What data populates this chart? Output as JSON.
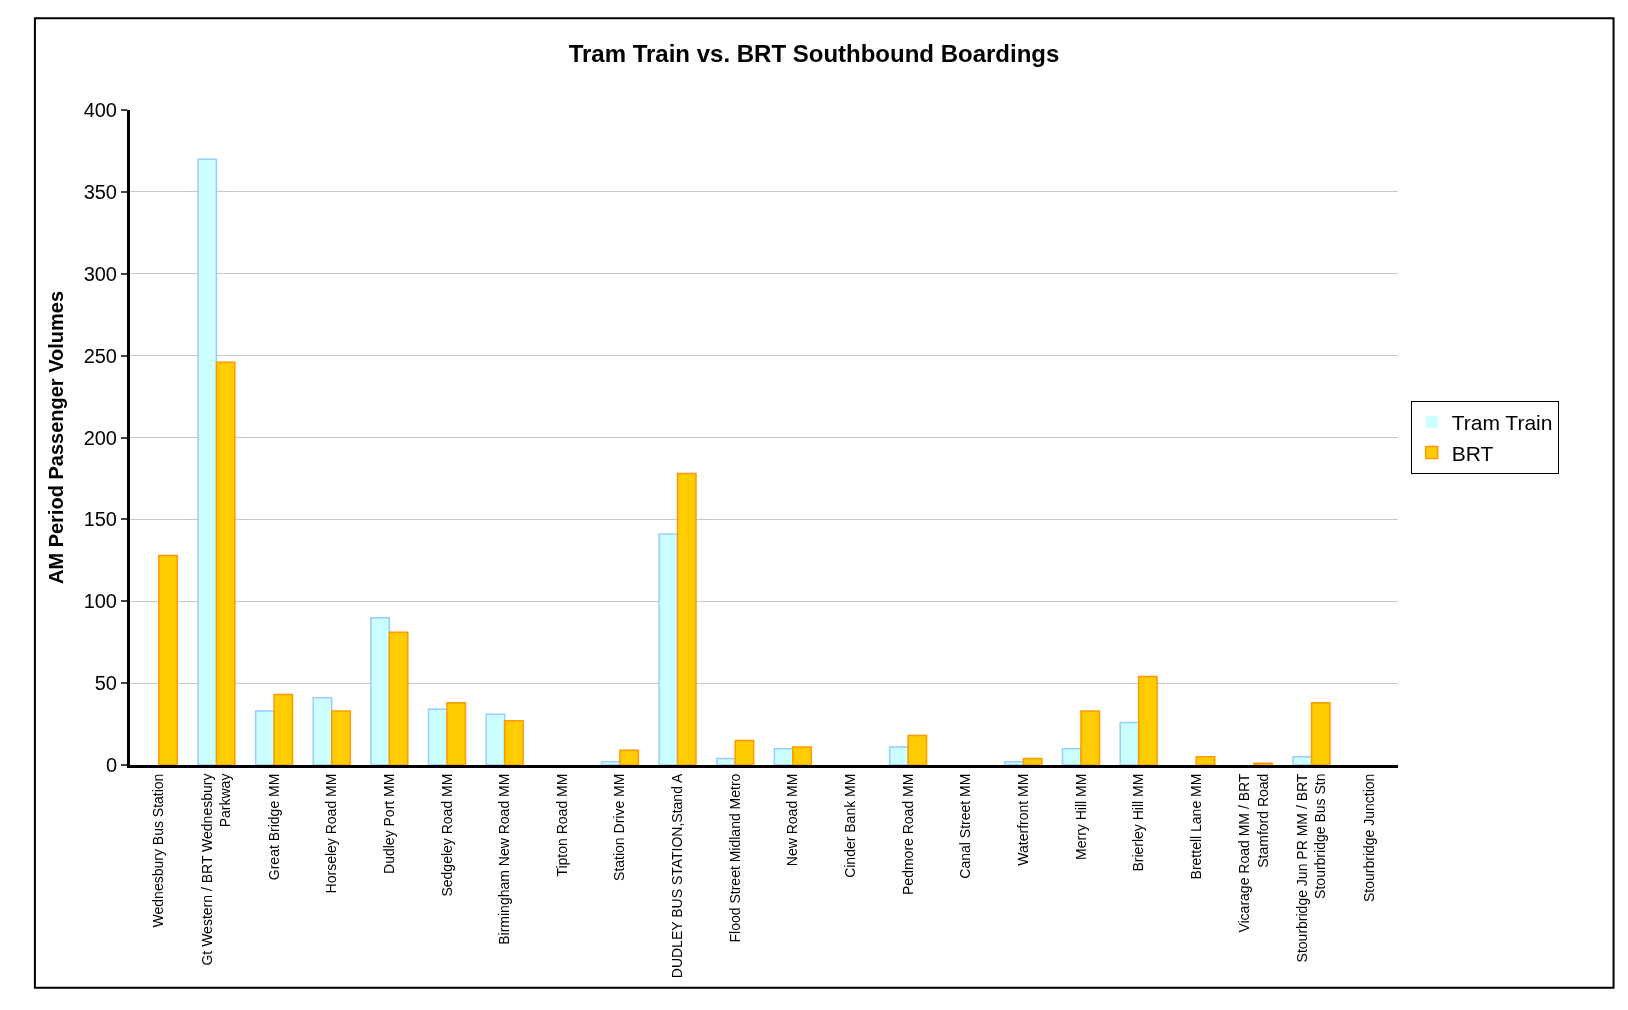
{
  "chart_data": {
    "type": "bar",
    "title": "Tram Train vs. BRT Southbound Boardings",
    "ylabel": "AM Period Passenger Volumes",
    "categories": [
      "Wednesbury Bus Station",
      "Gt Western / BRT Wednesbury Parkway",
      "Great Bridge MM",
      "Horseley Road MM",
      "Dudley Port MM",
      "Sedgeley Road MM",
      "Birmingham New Road MM",
      "Tipton Road MM",
      "Station Drive MM",
      "DUDLEY BUS STATION,Stand A",
      "Flood Street Midland Metro",
      "New Road MM",
      "Cinder Bank MM",
      "Pedmore Road MM",
      "Canal Street MM",
      "Waterfront MM",
      "Merry Hill MM",
      "Brierley Hill MM",
      "Brettell Lane MM",
      "Vicarage Road MM / BRT Stamford Road",
      "Stourbridge Jun PR MM / BRT Stourbridge Bus Stn",
      "Stourbridge Junction"
    ],
    "series": [
      {
        "name": "Tram Train",
        "color": "#ccffff",
        "values": [
          0,
          370,
          33,
          41,
          90,
          34,
          31,
          0,
          2,
          141,
          4,
          10,
          0,
          11,
          0,
          2,
          10,
          26,
          0,
          0,
          5,
          0
        ]
      },
      {
        "name": "BRT",
        "color": "#ffcc00",
        "values": [
          128,
          246,
          43,
          33,
          81,
          38,
          27,
          0,
          9,
          178,
          15,
          11,
          0,
          18,
          0,
          4,
          33,
          54,
          5,
          1,
          38,
          0
        ]
      }
    ],
    "ylim": [
      0,
      400
    ],
    "yticks": [
      0,
      50,
      100,
      150,
      200,
      250,
      300,
      350,
      400
    ],
    "grid": "y",
    "legend": "right"
  }
}
